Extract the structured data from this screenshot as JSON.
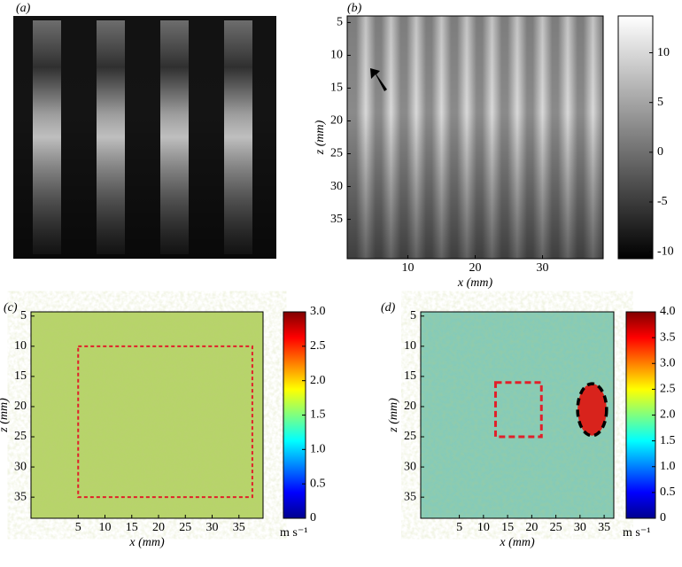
{
  "chart_data": [
    {
      "type": "image",
      "label": "(a)"
    },
    {
      "type": "heatmap",
      "label": "(b)",
      "colormap": "gray",
      "xlabel": "x (mm)",
      "ylabel": "z (mm)",
      "xlim": [
        1,
        39
      ],
      "xticks": [
        10,
        20,
        30
      ],
      "ylim": [
        4,
        41
      ],
      "yticks": [
        5,
        10,
        15,
        20,
        25,
        30,
        35
      ],
      "clim": [
        -10.7,
        13.7
      ],
      "cticks": [
        -10,
        -5,
        0,
        5,
        10
      ]
    },
    {
      "type": "heatmap",
      "label": "(c)",
      "colormap": "jet",
      "xlabel": "x (mm)",
      "ylabel": "z (mm)",
      "unit": "m s⁻¹",
      "xlim": [
        -3.8,
        39.5
      ],
      "xticks": [
        5,
        10,
        15,
        20,
        25,
        30,
        35
      ],
      "ylim": [
        4.3,
        38.5
      ],
      "yticks": [
        5,
        10,
        15,
        20,
        25,
        30,
        35
      ],
      "clim": [
        0,
        3
      ],
      "cticks": [
        0,
        0.5,
        {
          "value": 1,
          "label": "1.0"
        },
        1.5,
        {
          "value": 2,
          "label": "2.0"
        },
        2.5,
        {
          "value": 3,
          "label": "3.0"
        }
      ],
      "roi": {
        "x": [
          5,
          37.5
        ],
        "z": [
          10,
          35
        ]
      }
    },
    {
      "type": "heatmap",
      "label": "(d)",
      "colormap": "jet",
      "xlabel": "x (mm)",
      "ylabel": "z (mm)",
      "unit": "m s⁻¹",
      "xlim": [
        -3,
        37
      ],
      "xticks": [
        5,
        10,
        15,
        20,
        25,
        30,
        35
      ],
      "ylim": [
        4.3,
        38.5
      ],
      "yticks": [
        5,
        10,
        15,
        20,
        25,
        30,
        35
      ],
      "clim": [
        0,
        4
      ],
      "cticks": [
        0,
        0.5,
        {
          "value": 1,
          "label": "1.0"
        },
        1.5,
        {
          "value": 2,
          "label": "2.0"
        },
        2.5,
        {
          "value": 3,
          "label": "3.0"
        },
        3.5,
        {
          "value": 4,
          "label": "4.0"
        }
      ],
      "roi": {
        "x": [
          12.5,
          22
        ],
        "z": [
          16,
          25
        ]
      },
      "inclusion": {
        "x": 32.5,
        "z": 20.5,
        "rx": 3,
        "rz": 4.3
      }
    }
  ]
}
